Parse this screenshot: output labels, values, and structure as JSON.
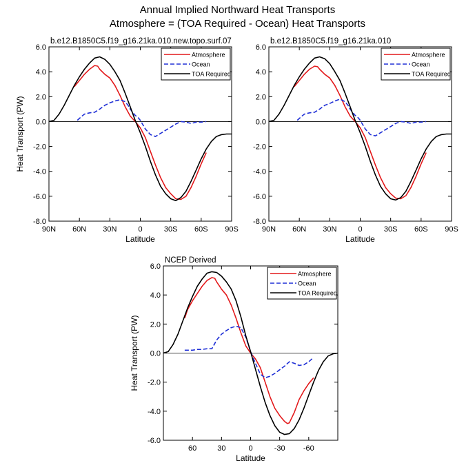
{
  "title_line1": "Annual Implied Northward Heat Transports",
  "title_line2": "Atmosphere = (TOA Required - Ocean) Heat Transports",
  "colors": {
    "atmosphere": "#e31a1c",
    "ocean": "#1f2fd6",
    "toa": "#000000"
  },
  "chart_data": [
    {
      "type": "line",
      "subtitle": "b.e12.B1850C5.f19_g16.21ka.010.new.topo.surf.07",
      "xlabel": "Latitude",
      "ylabel": "Heat Transport (PW)",
      "xlim": [
        90,
        -90
      ],
      "ylim": [
        -8,
        6
      ],
      "xticks": [
        90,
        60,
        30,
        0,
        -30,
        -60,
        -90
      ],
      "xtick_labels": [
        "90N",
        "60N",
        "30N",
        "0",
        "30S",
        "60S",
        "90S"
      ],
      "yticks": [
        -8,
        -6,
        -4,
        -2,
        0,
        2,
        4,
        6
      ],
      "ytick_labels": [
        "-8.0",
        "-6.0",
        "-4.0",
        "-2.0",
        "0.0",
        "2.0",
        "4.0",
        "6.0"
      ],
      "zero_line": true,
      "legend": "top-right",
      "series": [
        {
          "name": "Atmosphere",
          "style": "solid",
          "color_key": "atmosphere",
          "x": [
            65,
            60,
            55,
            50,
            45,
            42,
            40,
            35,
            30,
            25,
            20,
            15,
            10,
            5,
            0,
            -5,
            -10,
            -15,
            -20,
            -25,
            -30,
            -35,
            -40,
            -45,
            -50,
            -55,
            -60,
            -65
          ],
          "y": [
            2.8,
            3.3,
            3.8,
            4.2,
            4.5,
            4.45,
            4.2,
            3.8,
            3.5,
            2.9,
            2.1,
            1.2,
            0.45,
            0.0,
            -0.5,
            -1.3,
            -2.4,
            -3.5,
            -4.5,
            -5.3,
            -5.8,
            -6.2,
            -6.25,
            -6.0,
            -5.3,
            -4.4,
            -3.4,
            -2.5
          ]
        },
        {
          "name": "Ocean",
          "style": "dashed",
          "color_key": "ocean",
          "x": [
            62,
            58,
            55,
            50,
            45,
            40,
            35,
            30,
            25,
            20,
            15,
            12,
            10,
            5,
            2,
            0,
            -5,
            -10,
            -15,
            -20,
            -25,
            -30,
            -35,
            -40,
            -45,
            -50,
            -55,
            -60,
            -65
          ],
          "y": [
            0.1,
            0.4,
            0.6,
            0.7,
            0.75,
            1.0,
            1.3,
            1.5,
            1.65,
            1.75,
            1.6,
            1.3,
            1.0,
            0.5,
            0.3,
            0.1,
            -0.6,
            -1.05,
            -1.2,
            -0.95,
            -0.7,
            -0.45,
            -0.2,
            0.0,
            -0.05,
            -0.15,
            -0.05,
            -0.05,
            0.0
          ]
        },
        {
          "name": "TOA Required",
          "style": "solid",
          "color_key": "toa",
          "x": [
            90,
            85,
            80,
            75,
            70,
            65,
            60,
            55,
            50,
            45,
            40,
            35,
            30,
            25,
            20,
            15,
            10,
            5,
            0,
            -5,
            -10,
            -15,
            -20,
            -25,
            -30,
            -35,
            -40,
            -45,
            -50,
            -55,
            -60,
            -65,
            -70,
            -75,
            -80,
            -85,
            -90
          ],
          "y": [
            0.0,
            0.1,
            0.6,
            1.3,
            2.1,
            2.9,
            3.6,
            4.2,
            4.7,
            5.1,
            5.2,
            5.0,
            4.6,
            4.0,
            3.3,
            2.3,
            1.2,
            0.1,
            -0.9,
            -2.0,
            -3.2,
            -4.3,
            -5.2,
            -5.8,
            -6.2,
            -6.35,
            -6.1,
            -5.6,
            -4.8,
            -3.9,
            -3.0,
            -2.2,
            -1.6,
            -1.2,
            -1.05,
            -1.0,
            -1.0
          ]
        }
      ]
    },
    {
      "type": "line",
      "subtitle": "b.e12.B1850C5.f19_g16.21ka.010",
      "xlabel": "Latitude",
      "ylabel": "",
      "xlim": [
        90,
        -90
      ],
      "ylim": [
        -8,
        6
      ],
      "xticks": [
        90,
        60,
        30,
        0,
        -30,
        -60,
        -90
      ],
      "xtick_labels": [
        "90N",
        "60N",
        "30N",
        "0",
        "30S",
        "60S",
        "90S"
      ],
      "yticks": [
        -8,
        -6,
        -4,
        -2,
        0,
        2,
        4,
        6
      ],
      "ytick_labels": [
        "-8.0",
        "-6.0",
        "-4.0",
        "-2.0",
        "0.0",
        "2.0",
        "4.0",
        "6.0"
      ],
      "zero_line": true,
      "legend": "top-right",
      "series": [
        {
          "name": "Atmosphere",
          "style": "solid",
          "color_key": "atmosphere",
          "x": [
            65,
            60,
            55,
            50,
            45,
            42,
            40,
            35,
            30,
            25,
            20,
            15,
            10,
            5,
            0,
            -5,
            -10,
            -15,
            -20,
            -25,
            -30,
            -35,
            -40,
            -45,
            -50,
            -55,
            -60,
            -65
          ],
          "y": [
            2.8,
            3.3,
            3.8,
            4.2,
            4.45,
            4.4,
            4.2,
            3.8,
            3.5,
            2.9,
            2.1,
            1.2,
            0.45,
            0.0,
            -0.5,
            -1.3,
            -2.4,
            -3.5,
            -4.5,
            -5.3,
            -5.8,
            -6.15,
            -6.2,
            -5.95,
            -5.3,
            -4.4,
            -3.4,
            -2.5
          ]
        },
        {
          "name": "Ocean",
          "style": "dashed",
          "color_key": "ocean",
          "x": [
            62,
            58,
            55,
            50,
            45,
            40,
            35,
            30,
            25,
            20,
            15,
            12,
            10,
            5,
            2,
            0,
            -5,
            -10,
            -15,
            -20,
            -25,
            -30,
            -35,
            -40,
            -45,
            -50,
            -55,
            -60,
            -65
          ],
          "y": [
            0.1,
            0.4,
            0.6,
            0.7,
            0.75,
            1.0,
            1.3,
            1.45,
            1.65,
            1.8,
            1.6,
            1.3,
            1.0,
            0.5,
            0.3,
            0.1,
            -0.6,
            -1.05,
            -1.15,
            -0.9,
            -0.65,
            -0.4,
            -0.15,
            0.0,
            -0.05,
            -0.15,
            -0.05,
            -0.05,
            0.0
          ]
        },
        {
          "name": "TOA Required",
          "style": "solid",
          "color_key": "toa",
          "x": [
            90,
            85,
            80,
            75,
            70,
            65,
            60,
            55,
            50,
            45,
            40,
            35,
            30,
            25,
            20,
            15,
            10,
            5,
            0,
            -5,
            -10,
            -15,
            -20,
            -25,
            -30,
            -35,
            -40,
            -45,
            -50,
            -55,
            -60,
            -65,
            -70,
            -75,
            -80,
            -85,
            -90
          ],
          "y": [
            0.0,
            0.1,
            0.6,
            1.3,
            2.1,
            2.9,
            3.6,
            4.2,
            4.7,
            5.1,
            5.2,
            5.05,
            4.65,
            4.0,
            3.3,
            2.3,
            1.2,
            0.1,
            -0.9,
            -2.0,
            -3.2,
            -4.3,
            -5.2,
            -5.8,
            -6.2,
            -6.3,
            -6.1,
            -5.6,
            -4.8,
            -3.9,
            -3.0,
            -2.2,
            -1.6,
            -1.2,
            -1.05,
            -1.0,
            -1.0
          ]
        }
      ]
    },
    {
      "type": "line",
      "subtitle": "NCEP Derived",
      "xlabel": "Latitude",
      "ylabel": "Heat Transport (PW)",
      "xlim": [
        90,
        -90
      ],
      "ylim": [
        -6,
        6
      ],
      "xticks": [
        60,
        30,
        0,
        -30,
        -60
      ],
      "xtick_labels": [
        "60",
        "30",
        "0",
        "-30",
        "-60"
      ],
      "yticks": [
        -6,
        -4,
        -2,
        0,
        2,
        4,
        6
      ],
      "ytick_labels": [
        "-6.0",
        "-4.0",
        "-2.0",
        "0.0",
        "2.0",
        "4.0",
        "6.0"
      ],
      "zero_line": true,
      "legend": "top-right",
      "series": [
        {
          "name": "Atmosphere",
          "style": "solid",
          "color_key": "atmosphere",
          "x": [
            68,
            65,
            60,
            55,
            50,
            45,
            40,
            37,
            35,
            30,
            25,
            20,
            15,
            10,
            5,
            0,
            -5,
            -10,
            -15,
            -20,
            -25,
            -30,
            -35,
            -38,
            -40,
            -45,
            -50,
            -55,
            -60,
            -65
          ],
          "y": [
            2.4,
            3.0,
            3.6,
            4.1,
            4.6,
            5.0,
            5.2,
            5.15,
            4.9,
            4.4,
            4.0,
            3.3,
            2.4,
            1.4,
            0.5,
            0.0,
            -0.4,
            -1.0,
            -2.0,
            -3.0,
            -3.8,
            -4.3,
            -4.7,
            -4.85,
            -4.8,
            -4.1,
            -3.2,
            -2.6,
            -2.1,
            -1.7
          ]
        },
        {
          "name": "Ocean",
          "style": "dashed",
          "color_key": "ocean",
          "x": [
            68,
            60,
            55,
            50,
            45,
            40,
            35,
            30,
            25,
            20,
            15,
            10,
            5,
            2,
            0,
            -5,
            -10,
            -15,
            -20,
            -25,
            -30,
            -35,
            -40,
            -45,
            -50,
            -55,
            -60,
            -65
          ],
          "y": [
            0.2,
            0.2,
            0.25,
            0.25,
            0.3,
            0.3,
            0.9,
            1.3,
            1.55,
            1.75,
            1.85,
            1.75,
            1.1,
            0.5,
            0.1,
            -0.7,
            -1.45,
            -1.7,
            -1.6,
            -1.4,
            -1.15,
            -0.9,
            -0.6,
            -0.7,
            -0.85,
            -0.8,
            -0.6,
            -0.3
          ]
        },
        {
          "name": "TOA Required",
          "style": "solid",
          "color_key": "toa",
          "x": [
            90,
            85,
            80,
            75,
            70,
            65,
            60,
            55,
            50,
            45,
            40,
            35,
            30,
            25,
            20,
            15,
            10,
            5,
            0,
            -5,
            -10,
            -15,
            -20,
            -25,
            -30,
            -35,
            -40,
            -45,
            -50,
            -55,
            -60,
            -65,
            -70,
            -75,
            -80,
            -85,
            -90
          ],
          "y": [
            0.0,
            0.1,
            0.6,
            1.3,
            2.2,
            3.1,
            3.9,
            4.6,
            5.1,
            5.5,
            5.6,
            5.55,
            5.3,
            4.9,
            4.4,
            3.6,
            2.5,
            1.2,
            0.1,
            -1.1,
            -2.3,
            -3.4,
            -4.3,
            -5.0,
            -5.45,
            -5.6,
            -5.55,
            -5.2,
            -4.6,
            -3.8,
            -2.9,
            -2.0,
            -1.2,
            -0.6,
            -0.2,
            -0.05,
            0.0
          ]
        }
      ]
    }
  ]
}
